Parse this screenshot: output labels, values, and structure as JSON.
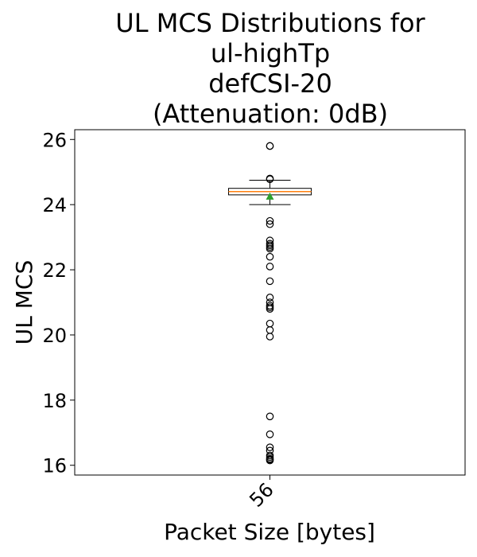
{
  "chart_data": {
    "type": "box",
    "title_lines": [
      "UL MCS Distributions for",
      "ul-highTp",
      "defCSI-20",
      "(Attenuation: 0dB)"
    ],
    "xlabel": "Packet Size [bytes]",
    "ylabel": "UL MCS",
    "ylim": [
      15.7,
      26.3
    ],
    "yticks": [
      16,
      18,
      20,
      22,
      24,
      26
    ],
    "categories": [
      "56"
    ],
    "box": {
      "category": "56",
      "q1": 24.3,
      "median": 24.4,
      "q3": 24.5,
      "whisker_low": 24.0,
      "whisker_high": 24.75,
      "mean": 24.25,
      "fliers": [
        25.8,
        25.8,
        24.8,
        24.78,
        23.5,
        23.4,
        22.9,
        22.8,
        22.75,
        22.7,
        22.65,
        22.4,
        22.1,
        21.65,
        21.15,
        21.0,
        20.9,
        20.85,
        20.8,
        20.35,
        20.15,
        19.95,
        17.5,
        16.95,
        16.55,
        16.45,
        16.3,
        16.25,
        16.2,
        16.18,
        16.15
      ]
    },
    "colors": {
      "median": "#ff7f0e",
      "mean": "#2ca02c",
      "box": "#000000"
    },
    "grid": false,
    "legend": "none"
  }
}
